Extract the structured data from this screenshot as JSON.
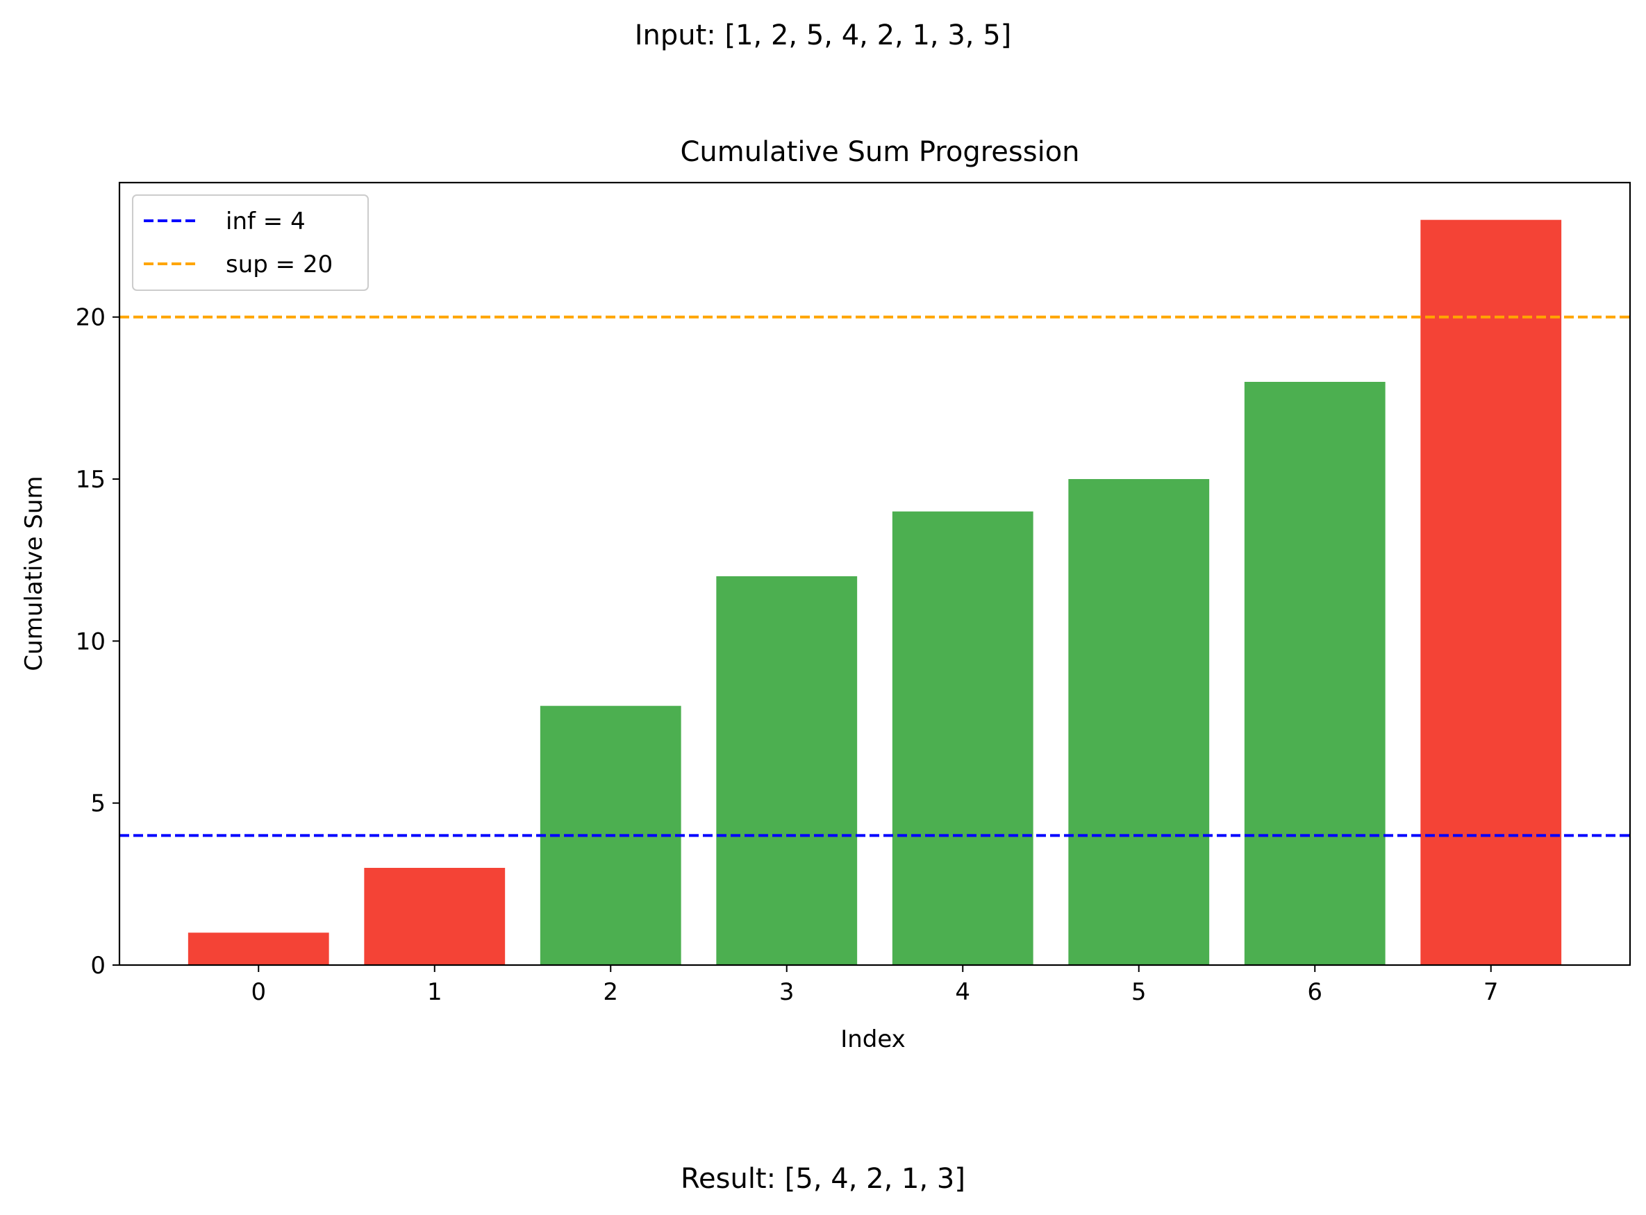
{
  "header": {
    "input_text": "Input: [1, 2, 5, 4, 2, 1, 3, 5]"
  },
  "footer": {
    "result_text": "Result: [5, 4, 2, 1, 3]"
  },
  "chart_data": {
    "type": "bar",
    "title": "Cumulative Sum Progression",
    "xlabel": "Index",
    "ylabel": "Cumulative Sum",
    "categories": [
      "0",
      "1",
      "2",
      "3",
      "4",
      "5",
      "6",
      "7"
    ],
    "values": [
      1,
      3,
      8,
      12,
      14,
      15,
      18,
      23
    ],
    "bar_colors": [
      "#f44336",
      "#f44336",
      "#4caf50",
      "#4caf50",
      "#4caf50",
      "#4caf50",
      "#4caf50",
      "#f44336"
    ],
    "ylim": [
      0,
      24.15
    ],
    "yticks": [
      0,
      5,
      10,
      15,
      20
    ],
    "grid": false,
    "reference_lines": [
      {
        "label": "inf = 4",
        "value": 4,
        "color": "#0000ff",
        "style": "dashed"
      },
      {
        "label": "sup = 20",
        "value": 20,
        "color": "#ffa500",
        "style": "dashed"
      }
    ],
    "legend": {
      "position": "top-left",
      "entries": [
        "inf = 4",
        "sup = 20"
      ]
    }
  }
}
